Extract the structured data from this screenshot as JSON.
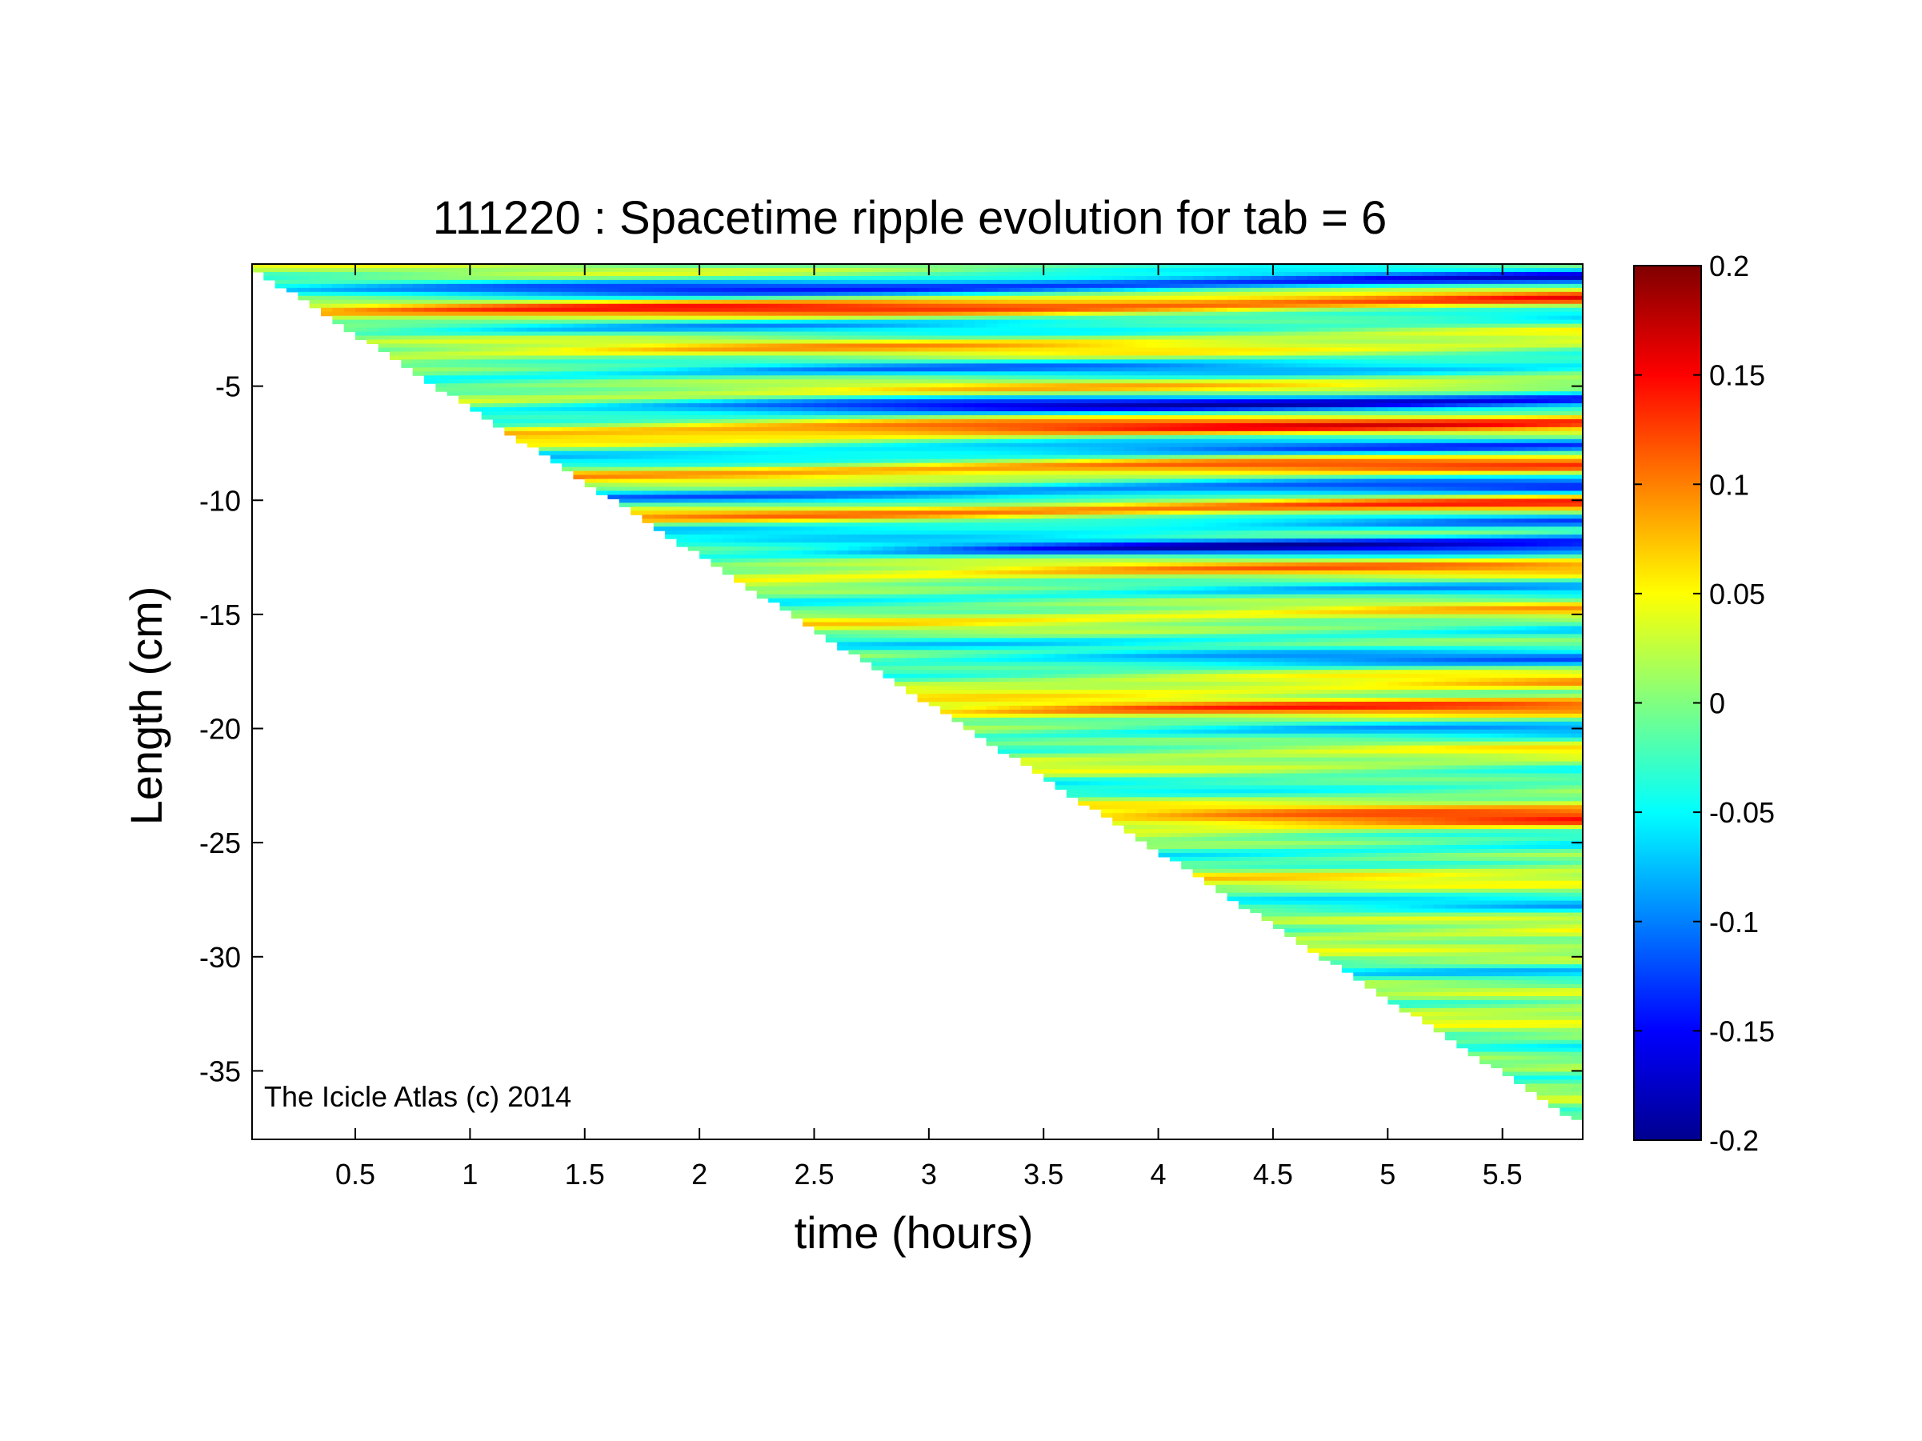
{
  "chart_data": {
    "type": "heatmap",
    "title": "111220 : Spacetime ripple evolution for tab = 6",
    "xlabel": "time (hours)",
    "ylabel": "Length (cm)",
    "xlim": [
      0.05,
      5.85
    ],
    "ylim": [
      -38,
      0.35
    ],
    "x_ticks": [
      0.5,
      1,
      1.5,
      2,
      2.5,
      3,
      3.5,
      4,
      4.5,
      5,
      5.5
    ],
    "x_tick_labels": [
      "0.5",
      "1",
      "1.5",
      "2",
      "2.5",
      "3",
      "3.5",
      "4",
      "4.5",
      "5",
      "5.5"
    ],
    "y_ticks": [
      -5,
      -10,
      -15,
      -20,
      -25,
      -30,
      -35
    ],
    "y_tick_labels": [
      "-5",
      "-10",
      "-15",
      "-20",
      "-25",
      "-30",
      "-35"
    ],
    "colorbar": {
      "range": [
        -0.2,
        0.2
      ],
      "ticks": [
        0.2,
        0.15,
        0.1,
        0.05,
        0,
        -0.05,
        -0.1,
        -0.15,
        -0.2
      ],
      "tick_labels": [
        "0.2",
        "0.15",
        "0.1",
        "0.05",
        "0",
        "-0.05",
        "-0.1",
        "-0.15",
        "-0.2"
      ],
      "colormap": "jet"
    },
    "data_boundary": {
      "description_free": true,
      "lower_edge": [
        [
          0.05,
          0.35
        ],
        [
          5.85,
          -37.2
        ]
      ]
    },
    "ripples": [
      {
        "y": -0.6,
        "amp": -0.14,
        "start": 1.0
      },
      {
        "y": -1.5,
        "amp": 0.13,
        "start": 0.2
      },
      {
        "y": -2.3,
        "amp": -0.06,
        "start": 0.6
      },
      {
        "y": -3.3,
        "amp": 0.06,
        "start": 0.6
      },
      {
        "y": -4.3,
        "amp": -0.08,
        "start": 0.8
      },
      {
        "y": -5.2,
        "amp": 0.05,
        "start": 0.8
      },
      {
        "y": -5.9,
        "amp": -0.16,
        "start": 1.8
      },
      {
        "y": -6.9,
        "amp": 0.13,
        "start": 1.2
      },
      {
        "y": -7.9,
        "amp": -0.1,
        "start": 1.4
      },
      {
        "y": -8.7,
        "amp": 0.11,
        "start": 1.6
      },
      {
        "y": -9.7,
        "amp": -0.12,
        "start": 1.7
      },
      {
        "y": -10.5,
        "amp": 0.12,
        "start": 1.9
      },
      {
        "y": -11.2,
        "amp": -0.09,
        "start": 2.0
      },
      {
        "y": -12.2,
        "amp": -0.17,
        "start": 3.2
      },
      {
        "y": -13.2,
        "amp": 0.08,
        "start": 2.2
      },
      {
        "y": -14.2,
        "amp": -0.06,
        "start": 2.3
      },
      {
        "y": -15.2,
        "amp": 0.06,
        "start": 2.5
      },
      {
        "y": -16.2,
        "amp": -0.05,
        "start": 2.6
      },
      {
        "y": -17.2,
        "amp": -0.09,
        "start": 3.0
      },
      {
        "y": -18.3,
        "amp": 0.07,
        "start": 2.8
      },
      {
        "y": -19.3,
        "amp": 0.11,
        "start": 2.9
      },
      {
        "y": -20.4,
        "amp": -0.07,
        "start": 3.4
      },
      {
        "y": -21.5,
        "amp": 0.05,
        "start": 3.3
      },
      {
        "y": -22.5,
        "amp": -0.05,
        "start": 3.5
      },
      {
        "y": -23.7,
        "amp": 0.06,
        "start": 3.6
      },
      {
        "y": -24.3,
        "amp": 0.12,
        "start": 4.0
      },
      {
        "y": -25.5,
        "amp": -0.06,
        "start": 3.9
      },
      {
        "y": -26.7,
        "amp": 0.05,
        "start": 4.1
      },
      {
        "y": -28.0,
        "amp": -0.06,
        "start": 4.3
      },
      {
        "y": -29.4,
        "amp": 0.05,
        "start": 4.5
      },
      {
        "y": -31.0,
        "amp": -0.05,
        "start": 4.8
      },
      {
        "y": -32.8,
        "amp": 0.05,
        "start": 5.0
      },
      {
        "y": -34.6,
        "amp": -0.04,
        "start": 5.3
      }
    ]
  },
  "watermark": "The Icicle Atlas (c) 2014"
}
